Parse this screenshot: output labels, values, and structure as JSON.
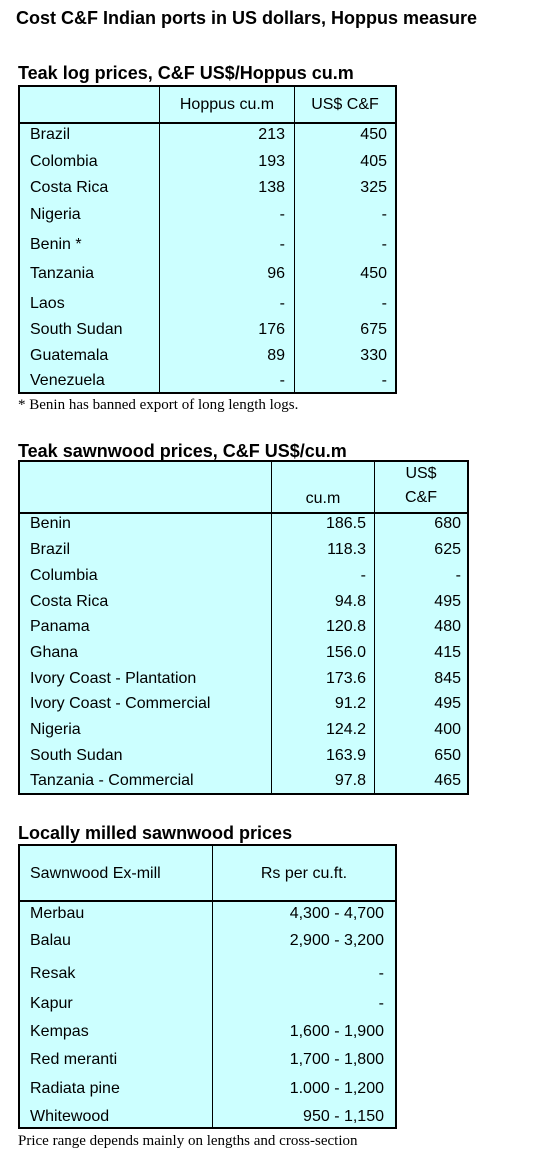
{
  "page_title": "Cost C&F Indian ports in US dollars, Hoppus measure",
  "logs": {
    "title": "Teak log prices, C&F US$/Hoppus cu.m",
    "header": {
      "col1": "Hoppus cu.m",
      "col2": "US$ C&F"
    },
    "rows": [
      {
        "country": "Brazil",
        "hoppus": "213",
        "usd": "450"
      },
      {
        "country": "Colombia",
        "hoppus": "193",
        "usd": "405"
      },
      {
        "country": "Costa Rica",
        "hoppus": "138",
        "usd": "325"
      },
      {
        "country": "Nigeria",
        "hoppus": "-",
        "usd": "-"
      },
      {
        "country": "Benin *",
        "hoppus": "-",
        "usd": "-"
      },
      {
        "country": "Tanzania",
        "hoppus": "96",
        "usd": "450"
      },
      {
        "country": "Laos",
        "hoppus": "-",
        "usd": "-"
      },
      {
        "country": "South Sudan",
        "hoppus": "176",
        "usd": "675"
      },
      {
        "country": "Guatemala",
        "hoppus": "89",
        "usd": "330"
      },
      {
        "country": "Venezuela",
        "hoppus": "-",
        "usd": "-"
      }
    ],
    "note": "* Benin has banned export of long length logs."
  },
  "sawn": {
    "title": "Teak sawnwood prices, C&F US$/cu.m",
    "header": {
      "col1": "cu.m",
      "col2_line1": "US$",
      "col2_line2": "C&F"
    },
    "rows": [
      {
        "country": "Benin",
        "cum": "186.5",
        "usd": "680"
      },
      {
        "country": "Brazil",
        "cum": "118.3",
        "usd": "625"
      },
      {
        "country": "Columbia",
        "cum": "-",
        "usd": "-"
      },
      {
        "country": "Costa Rica",
        "cum": "94.8",
        "usd": "495"
      },
      {
        "country": "Panama",
        "cum": "120.8",
        "usd": "480"
      },
      {
        "country": "Ghana",
        "cum": "156.0",
        "usd": "415"
      },
      {
        "country": "Ivory Coast - Plantation",
        "cum": "173.6",
        "usd": "845"
      },
      {
        "country": "Ivory Coast - Commercial",
        "cum": "91.2",
        "usd": "495"
      },
      {
        "country": "Nigeria",
        "cum": "124.2",
        "usd": "400"
      },
      {
        "country": "South Sudan",
        "cum": "163.9",
        "usd": "650"
      },
      {
        "country": "Tanzania - Commercial",
        "cum": "97.8",
        "usd": "465"
      }
    ]
  },
  "local": {
    "title": "Locally milled sawnwood prices",
    "header": {
      "col1": "Sawnwood Ex-mill",
      "col2": "Rs per cu.ft."
    },
    "rows": [
      {
        "species": "Merbau",
        "price": "4,300 - 4,700"
      },
      {
        "species": "Balau",
        "price": "2,900 - 3,200"
      },
      {
        "species": "Resak",
        "price": "-"
      },
      {
        "species": "Kapur",
        "price": "-"
      },
      {
        "species": "Kempas",
        "price": "1,600 - 1,900"
      },
      {
        "species": "Red meranti",
        "price": "1,700 - 1,800"
      },
      {
        "species": "Radiata pine",
        "price": "1.000 - 1,200"
      },
      {
        "species": "Whitewood",
        "price": "950 - 1,150"
      }
    ],
    "note": "Price range depends mainly on lengths and cross-section"
  }
}
